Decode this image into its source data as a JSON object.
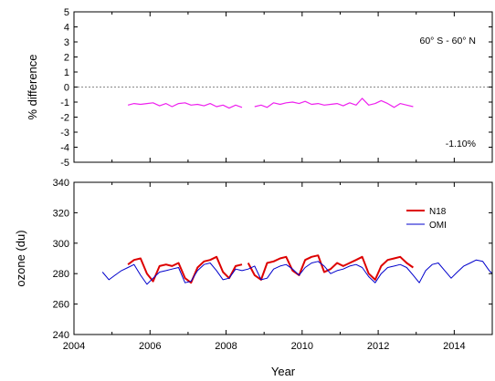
{
  "chart_data": [
    {
      "type": "line",
      "ylabel": "% difference",
      "ylim": [
        -5,
        5
      ],
      "yticks": [
        5,
        4,
        3,
        2,
        1,
        0,
        -1,
        -2,
        -3,
        -4,
        -5
      ],
      "xlim": [
        2004,
        2015
      ],
      "annotations": {
        "region": "60° S - 60° N",
        "mean": "-1.10%"
      },
      "reference_line": {
        "y": 0,
        "style": "dotted",
        "color": "#888888"
      },
      "series": [
        {
          "color": "#ee22ee",
          "segments": [
            {
              "x": [
                2005.42,
                2005.58,
                2005.75,
                2005.92,
                2006.08,
                2006.25,
                2006.42,
                2006.58,
                2006.75,
                2006.92,
                2007.08,
                2007.25,
                2007.42,
                2007.58,
                2007.75,
                2007.92,
                2008.08,
                2008.25,
                2008.42
              ],
              "y": [
                -1.2,
                -1.1,
                -1.15,
                -1.1,
                -1.05,
                -1.25,
                -1.1,
                -1.3,
                -1.1,
                -1.05,
                -1.2,
                -1.15,
                -1.25,
                -1.1,
                -1.3,
                -1.2,
                -1.4,
                -1.2,
                -1.35
              ]
            },
            {
              "x": [
                2008.75,
                2008.92,
                2009.08,
                2009.25,
                2009.42,
                2009.58,
                2009.75,
                2009.92,
                2010.08,
                2010.25,
                2010.42,
                2010.58,
                2010.75,
                2010.92,
                2011.08,
                2011.25,
                2011.42,
                2011.58,
                2011.75,
                2011.92,
                2012.08,
                2012.25,
                2012.42,
                2012.58,
                2012.75,
                2012.92
              ],
              "y": [
                -1.3,
                -1.2,
                -1.35,
                -1.05,
                -1.15,
                -1.05,
                -1.0,
                -1.1,
                -0.95,
                -1.15,
                -1.1,
                -1.2,
                -1.15,
                -1.1,
                -1.25,
                -1.05,
                -1.2,
                -0.75,
                -1.2,
                -1.1,
                -0.9,
                -1.1,
                -1.35,
                -1.1,
                -1.2,
                -1.3
              ]
            }
          ]
        }
      ]
    },
    {
      "type": "line",
      "xlabel": "Year",
      "ylabel": "ozone (du)",
      "xlim": [
        2004,
        2015
      ],
      "ylim": [
        240,
        340
      ],
      "xticks": [
        2004,
        2006,
        2008,
        2010,
        2012,
        2014
      ],
      "yticks": [
        340,
        320,
        300,
        280,
        260,
        240
      ],
      "legend_position": "right",
      "series": [
        {
          "name": "N18",
          "color": "#dd0000",
          "segments": [
            {
              "x": [
                2005.42,
                2005.58,
                2005.75,
                2005.92,
                2006.08,
                2006.25,
                2006.42,
                2006.58,
                2006.75,
                2006.92,
                2007.08,
                2007.25,
                2007.42,
                2007.58,
                2007.75,
                2007.92,
                2008.08,
                2008.25,
                2008.42
              ],
              "y": [
                286,
                289,
                290,
                280,
                275,
                285,
                286,
                285,
                287,
                277,
                274,
                284,
                288,
                289,
                291,
                281,
                277,
                285,
                286
              ]
            },
            {
              "x": [
                2008.58,
                2008.75,
                2008.92,
                2009.08,
                2009.25,
                2009.42,
                2009.58,
                2009.75,
                2009.92,
                2010.08,
                2010.25,
                2010.42,
                2010.58,
                2010.75,
                2010.92,
                2011.08,
                2011.25,
                2011.42,
                2011.58,
                2011.75,
                2011.92,
                2012.08,
                2012.25,
                2012.42,
                2012.58,
                2012.75,
                2012.92
              ],
              "y": [
                287,
                279,
                276,
                287,
                288,
                290,
                291,
                282,
                279,
                289,
                291,
                292,
                281,
                283,
                287,
                285,
                287,
                289,
                291,
                280,
                276,
                285,
                289,
                290,
                291,
                287,
                284
              ]
            }
          ]
        },
        {
          "name": "OMI",
          "color": "#0000cc",
          "segments": [
            {
              "x": [
                2004.75,
                2004.92,
                2005.08,
                2005.25,
                2005.42,
                2005.58,
                2005.75,
                2005.92,
                2006.08,
                2006.25,
                2006.42,
                2006.58,
                2006.75,
                2006.92,
                2007.08,
                2007.25,
                2007.42,
                2007.58,
                2007.75,
                2007.92,
                2008.08,
                2008.25,
                2008.42,
                2008.58,
                2008.75,
                2008.92,
                2009.08,
                2009.25,
                2009.42,
                2009.58,
                2009.75,
                2009.92,
                2010.08,
                2010.25,
                2010.42,
                2010.58,
                2010.75,
                2010.92,
                2011.08,
                2011.25,
                2011.42,
                2011.58,
                2011.75,
                2011.92,
                2012.08,
                2012.25,
                2012.42,
                2012.58,
                2012.75,
                2012.92,
                2013.08,
                2013.25,
                2013.42,
                2013.58,
                2013.75,
                2013.92,
                2014.08,
                2014.25,
                2014.42,
                2014.58,
                2014.75,
                2014.92,
                2015.0
              ],
              "y": [
                281,
                276,
                279,
                282,
                284,
                286,
                279,
                273,
                277,
                281,
                282,
                283,
                284,
                274,
                275,
                282,
                286,
                287,
                282,
                276,
                277,
                283,
                282,
                283,
                285,
                276,
                277,
                283,
                285,
                286,
                283,
                279,
                284,
                287,
                288,
                285,
                280,
                282,
                283,
                285,
                286,
                284,
                278,
                274,
                280,
                284,
                285,
                286,
                284,
                279,
                274,
                282,
                286,
                287,
                282,
                277,
                281,
                285,
                287,
                289,
                288,
                282,
                280
              ]
            }
          ]
        }
      ]
    }
  ]
}
